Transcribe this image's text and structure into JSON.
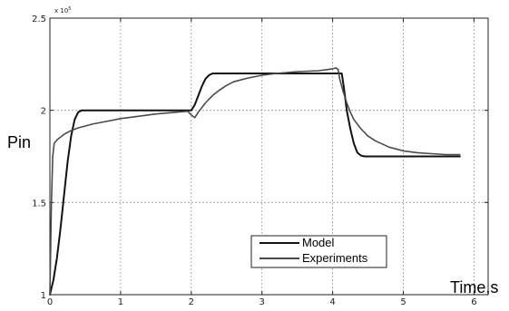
{
  "chart_data": {
    "type": "line",
    "title": "",
    "xlabel": "Time,s",
    "ylabel": "Pin",
    "y_exponent_label": "x 10",
    "y_exponent_power": "5",
    "xlim": [
      0,
      6.2
    ],
    "ylim": [
      1,
      2.5
    ],
    "x_ticks": [
      0,
      1,
      2,
      3,
      4,
      5,
      6
    ],
    "x_tick_labels": [
      "0",
      "1",
      "2",
      "3",
      "4",
      "5",
      "6"
    ],
    "y_ticks": [
      1,
      1.5,
      2,
      2.5
    ],
    "y_tick_labels": [
      "1",
      "1.5",
      "2",
      "2.5"
    ],
    "grid": true,
    "legend_position": "lower-right",
    "series": [
      {
        "name": "Model",
        "color": "#111111",
        "x": [
          0,
          0.05,
          0.1,
          0.15,
          0.2,
          0.25,
          0.3,
          0.35,
          0.4,
          0.45,
          0.5,
          0.6,
          0.8,
          1.0,
          1.5,
          2.0,
          2.05,
          2.1,
          2.15,
          2.2,
          2.25,
          2.3,
          2.35,
          2.4,
          2.5,
          3.0,
          3.5,
          4.0,
          4.05,
          4.1,
          4.13,
          4.16,
          4.2,
          4.25,
          4.3,
          4.35,
          4.4,
          4.45,
          4.5,
          4.6,
          5.0,
          5.8
        ],
        "y": [
          1.0,
          1.08,
          1.2,
          1.36,
          1.54,
          1.72,
          1.86,
          1.95,
          1.99,
          2.0,
          2.0,
          2.0,
          2.0,
          2.0,
          2.0,
          2.0,
          2.03,
          2.08,
          2.13,
          2.17,
          2.19,
          2.2,
          2.2,
          2.2,
          2.2,
          2.2,
          2.2,
          2.2,
          2.2,
          2.2,
          2.2,
          2.12,
          2.0,
          1.9,
          1.82,
          1.77,
          1.755,
          1.75,
          1.75,
          1.75,
          1.75,
          1.75
        ]
      },
      {
        "name": "Experiments",
        "color": "#4a4a4a",
        "x": [
          0,
          0.02,
          0.04,
          0.06,
          0.08,
          0.1,
          0.15,
          0.2,
          0.3,
          0.4,
          0.5,
          0.6,
          0.8,
          1.0,
          1.2,
          1.5,
          1.8,
          1.95,
          2.0,
          2.05,
          2.1,
          2.2,
          2.3,
          2.4,
          2.5,
          2.6,
          2.8,
          3.0,
          3.2,
          3.5,
          3.8,
          4.0,
          4.05,
          4.08,
          4.1,
          4.15,
          4.2,
          4.25,
          4.3,
          4.4,
          4.5,
          4.6,
          4.8,
          5.0,
          5.2,
          5.4,
          5.6,
          5.8
        ],
        "y": [
          1.0,
          1.48,
          1.75,
          1.82,
          1.83,
          1.84,
          1.855,
          1.87,
          1.89,
          1.905,
          1.915,
          1.925,
          1.94,
          1.955,
          1.965,
          1.98,
          1.99,
          1.995,
          1.975,
          1.96,
          1.99,
          2.04,
          2.08,
          2.11,
          2.135,
          2.155,
          2.175,
          2.19,
          2.2,
          2.21,
          2.215,
          2.225,
          2.23,
          2.22,
          2.17,
          2.1,
          2.04,
          1.99,
          1.95,
          1.9,
          1.86,
          1.835,
          1.8,
          1.78,
          1.77,
          1.765,
          1.76,
          1.76
        ]
      }
    ]
  }
}
